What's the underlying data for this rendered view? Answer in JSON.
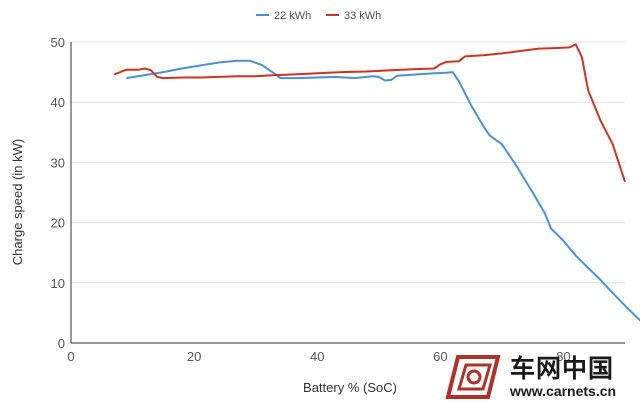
{
  "chart_data": {
    "type": "line",
    "title": "",
    "xlabel": "Battery % (SoC)",
    "ylabel": "Charge speed (in kW)",
    "xlim": [
      0,
      90
    ],
    "ylim": [
      0,
      50
    ],
    "x_ticks": [
      0,
      20,
      40,
      60,
      80
    ],
    "y_ticks": [
      0,
      10,
      20,
      30,
      40,
      50
    ],
    "grid": "horizontal",
    "legend_position": "top-center",
    "series": [
      {
        "name": "22 kWh",
        "color": "#4a90d9",
        "points": [
          [
            9,
            44.0
          ],
          [
            12,
            44.5
          ],
          [
            15,
            45.0
          ],
          [
            18,
            45.6
          ],
          [
            21,
            46.1
          ],
          [
            24,
            46.6
          ],
          [
            27,
            46.9
          ],
          [
            29,
            46.9
          ],
          [
            31,
            46.2
          ],
          [
            33,
            44.8
          ],
          [
            34,
            44.0
          ],
          [
            37,
            44.0
          ],
          [
            40,
            44.1
          ],
          [
            43,
            44.2
          ],
          [
            46,
            44.0
          ],
          [
            49,
            44.3
          ],
          [
            50,
            44.2
          ],
          [
            51,
            43.6
          ],
          [
            52,
            43.7
          ],
          [
            53,
            44.4
          ],
          [
            56,
            44.6
          ],
          [
            59,
            44.8
          ],
          [
            61,
            44.9
          ],
          [
            62,
            45.0
          ],
          [
            63,
            43.5
          ],
          [
            65,
            39.5
          ],
          [
            67,
            36.0
          ],
          [
            68,
            34.5
          ],
          [
            70,
            33.0
          ],
          [
            72,
            30.0
          ],
          [
            75,
            25.0
          ],
          [
            77,
            21.5
          ],
          [
            78,
            19.0
          ],
          [
            80,
            17.0
          ],
          [
            82,
            14.5
          ],
          [
            84,
            12.5
          ],
          [
            86,
            10.5
          ],
          [
            88,
            8.3
          ],
          [
            90,
            6.2
          ],
          [
            92,
            4.2
          ],
          [
            93,
            3.2
          ]
        ]
      },
      {
        "name": "33 kWh",
        "color": "#cc3322",
        "points": [
          [
            7,
            44.6
          ],
          [
            9,
            45.4
          ],
          [
            11,
            45.4
          ],
          [
            12,
            45.6
          ],
          [
            13,
            45.3
          ],
          [
            14,
            44.2
          ],
          [
            15,
            44.0
          ],
          [
            18,
            44.1
          ],
          [
            21,
            44.1
          ],
          [
            24,
            44.2
          ],
          [
            27,
            44.3
          ],
          [
            30,
            44.3
          ],
          [
            33,
            44.5
          ],
          [
            36,
            44.6
          ],
          [
            40,
            44.8
          ],
          [
            44,
            45.0
          ],
          [
            48,
            45.1
          ],
          [
            52,
            45.3
          ],
          [
            56,
            45.5
          ],
          [
            59,
            45.6
          ],
          [
            60,
            46.3
          ],
          [
            61,
            46.7
          ],
          [
            63,
            46.8
          ],
          [
            64,
            47.6
          ],
          [
            67,
            47.8
          ],
          [
            70,
            48.1
          ],
          [
            73,
            48.5
          ],
          [
            76,
            48.9
          ],
          [
            79,
            49.0
          ],
          [
            81,
            49.1
          ],
          [
            82,
            49.6
          ],
          [
            83,
            47.5
          ],
          [
            84,
            42.0
          ],
          [
            86,
            37.0
          ],
          [
            88,
            33.0
          ],
          [
            90,
            26.8
          ]
        ]
      }
    ]
  },
  "watermark": {
    "title": "车网中国",
    "url": "www.carnets.cn"
  }
}
